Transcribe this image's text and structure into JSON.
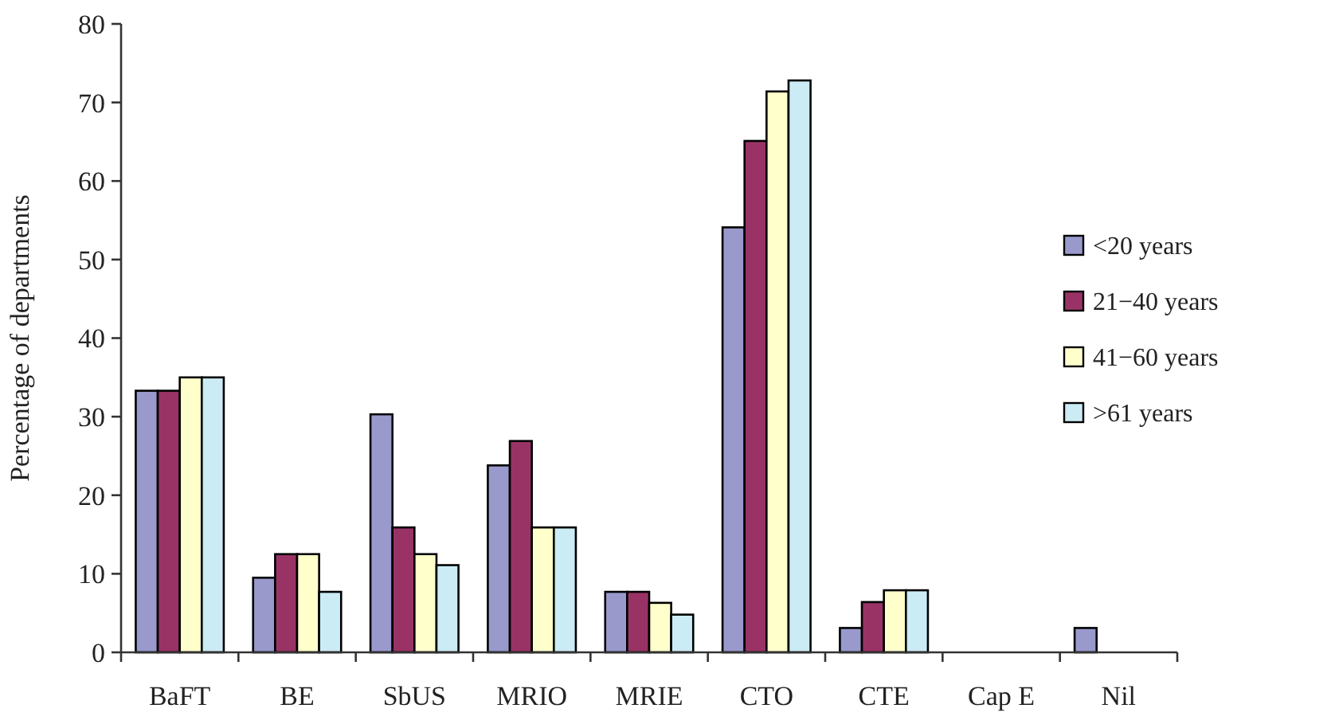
{
  "chart_data": {
    "type": "bar",
    "ylabel": "Percentage of departments",
    "categories": [
      "BaFT",
      "BE",
      "SbUS",
      "MRIO",
      "MRIE",
      "CTO",
      "CTE",
      "Cap E",
      "Nil"
    ],
    "series": [
      {
        "name": "<20 years",
        "color": "#9999cc",
        "values": [
          33.3,
          9.5,
          30.3,
          23.8,
          7.7,
          54.1,
          3.1,
          0,
          3.1
        ]
      },
      {
        "name": "21−40 years",
        "color": "#993366",
        "values": [
          33.3,
          12.5,
          15.9,
          26.9,
          7.7,
          65.1,
          6.4,
          0,
          0
        ]
      },
      {
        "name": "41−60 years",
        "color": "#ffffcc",
        "values": [
          35,
          12.5,
          12.5,
          15.9,
          6.3,
          71.4,
          7.9,
          0,
          0
        ]
      },
      {
        "name": ">61 years",
        "color": "#ccecf5",
        "values": [
          35,
          7.7,
          11.1,
          15.9,
          4.8,
          72.8,
          7.9,
          0,
          0
        ]
      }
    ],
    "ylim": [
      0,
      80
    ],
    "yticks": [
      0,
      10,
      20,
      30,
      40,
      50,
      60,
      70,
      80
    ],
    "grid": false,
    "legend": "right"
  }
}
